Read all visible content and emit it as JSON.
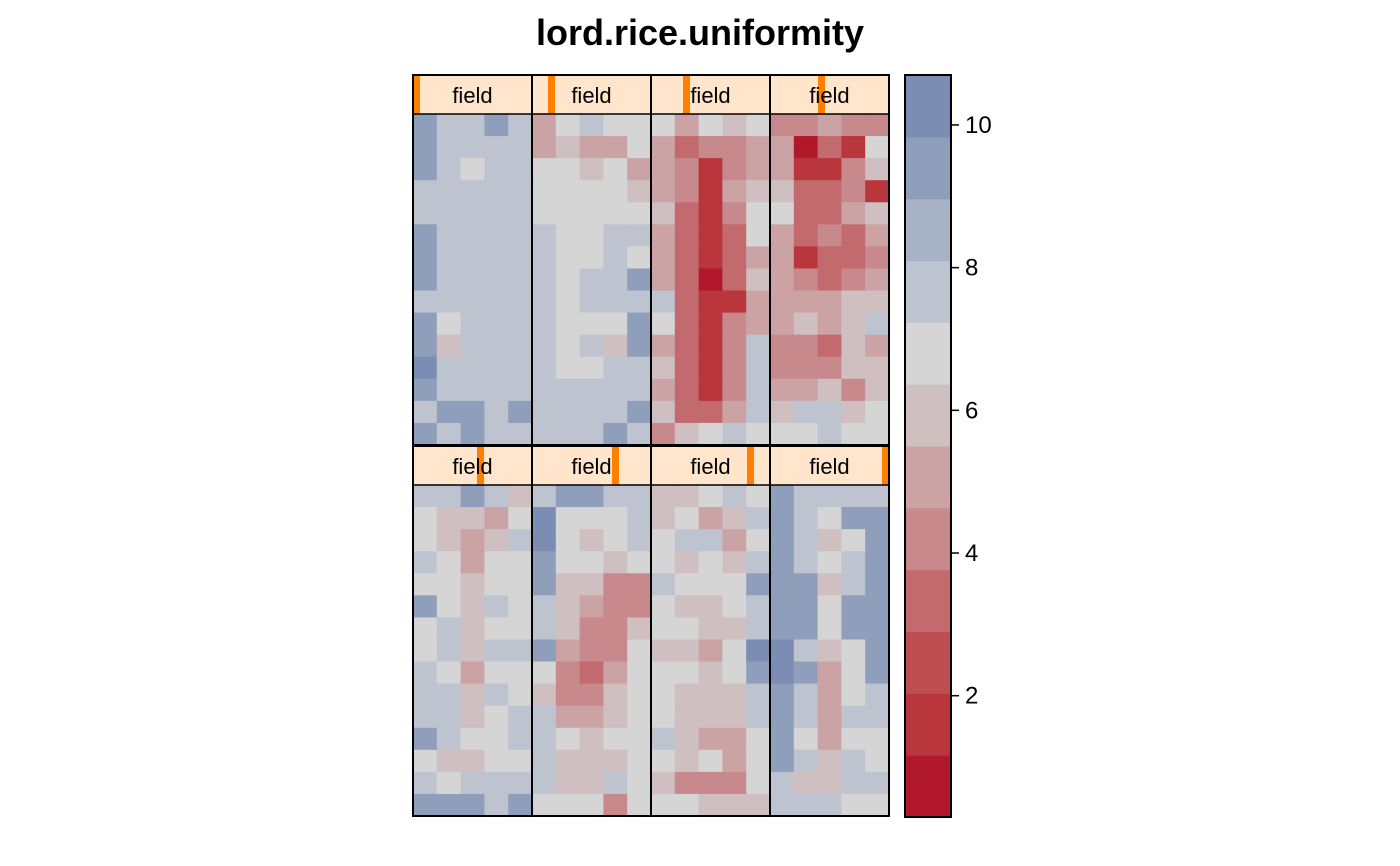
{
  "chart_data": {
    "type": "heatmap",
    "title": "lord.rice.uniformity",
    "xlabel": "",
    "ylabel": "",
    "panels": [
      {
        "strip_label": "field",
        "strip_level": 1,
        "strip_levels": 8,
        "grid": [
          [
            9,
            8,
            8,
            9,
            8
          ],
          [
            9,
            8,
            8,
            8,
            8
          ],
          [
            9,
            8,
            7,
            8,
            8
          ],
          [
            8,
            8,
            8,
            8,
            8
          ],
          [
            8,
            8,
            8,
            8,
            8
          ],
          [
            9,
            8,
            8,
            8,
            8
          ],
          [
            9,
            8,
            8,
            8,
            8
          ],
          [
            9,
            8,
            8,
            8,
            8
          ],
          [
            8,
            8,
            8,
            8,
            8
          ],
          [
            9,
            7,
            8,
            8,
            8
          ],
          [
            9,
            6,
            8,
            8,
            8
          ],
          [
            10,
            8,
            8,
            8,
            8
          ],
          [
            9,
            8,
            8,
            8,
            8
          ],
          [
            8,
            9,
            9,
            8,
            9
          ],
          [
            9,
            8,
            9,
            8,
            8
          ]
        ]
      },
      {
        "strip_label": "field",
        "strip_level": 2,
        "strip_levels": 8,
        "grid": [
          [
            5,
            7,
            8,
            7,
            7
          ],
          [
            5,
            6,
            5,
            5,
            7
          ],
          [
            7,
            7,
            6,
            7,
            5
          ],
          [
            7,
            7,
            7,
            7,
            6
          ],
          [
            7,
            7,
            7,
            7,
            7
          ],
          [
            8,
            7,
            7,
            8,
            8
          ],
          [
            8,
            7,
            7,
            8,
            7
          ],
          [
            8,
            7,
            8,
            8,
            9
          ],
          [
            8,
            7,
            8,
            8,
            8
          ],
          [
            8,
            7,
            7,
            7,
            9
          ],
          [
            8,
            7,
            8,
            6,
            9
          ],
          [
            8,
            7,
            7,
            8,
            8
          ],
          [
            8,
            8,
            8,
            8,
            8
          ],
          [
            8,
            8,
            8,
            8,
            9
          ],
          [
            8,
            8,
            8,
            9,
            8
          ]
        ]
      },
      {
        "strip_label": "field",
        "strip_level": 3,
        "strip_levels": 8,
        "grid": [
          [
            7,
            5,
            7,
            6,
            7
          ],
          [
            5,
            3,
            4,
            4,
            5
          ],
          [
            5,
            4,
            2,
            4,
            5
          ],
          [
            5,
            4,
            2,
            5,
            6
          ],
          [
            6,
            3,
            2,
            4,
            7
          ],
          [
            5,
            3,
            2,
            3,
            7
          ],
          [
            5,
            3,
            2,
            3,
            5
          ],
          [
            5,
            3,
            1,
            3,
            6
          ],
          [
            8,
            3,
            2,
            2,
            5
          ],
          [
            7,
            3,
            2,
            4,
            5
          ],
          [
            5,
            3,
            2,
            4,
            8
          ],
          [
            6,
            3,
            2,
            4,
            8
          ],
          [
            5,
            3,
            2,
            4,
            8
          ],
          [
            6,
            3,
            3,
            5,
            8
          ],
          [
            4,
            6,
            7,
            8,
            7
          ]
        ]
      },
      {
        "strip_label": "field",
        "strip_level": 4,
        "strip_levels": 8,
        "grid": [
          [
            4,
            4,
            5,
            4,
            4
          ],
          [
            5,
            1,
            3,
            2,
            7
          ],
          [
            5,
            2,
            2,
            4,
            6
          ],
          [
            6,
            3,
            3,
            4,
            2
          ],
          [
            7,
            3,
            3,
            5,
            6
          ],
          [
            5,
            3,
            4,
            3,
            5
          ],
          [
            5,
            2,
            3,
            3,
            4
          ],
          [
            5,
            4,
            3,
            4,
            5
          ],
          [
            5,
            5,
            5,
            6,
            6
          ],
          [
            5,
            6,
            5,
            6,
            8
          ],
          [
            4,
            4,
            3,
            6,
            5
          ],
          [
            4,
            4,
            4,
            6,
            6
          ],
          [
            5,
            5,
            6,
            4,
            6
          ],
          [
            6,
            8,
            8,
            6,
            7
          ],
          [
            7,
            7,
            8,
            7,
            7
          ]
        ]
      },
      {
        "strip_label": "field",
        "strip_level": 5,
        "strip_levels": 8,
        "grid": [
          [
            8,
            8,
            9,
            8,
            6
          ],
          [
            7,
            6,
            6,
            5,
            7
          ],
          [
            7,
            6,
            5,
            6,
            8
          ],
          [
            8,
            7,
            5,
            7,
            7
          ],
          [
            7,
            7,
            6,
            7,
            7
          ],
          [
            9,
            7,
            6,
            8,
            7
          ],
          [
            7,
            8,
            6,
            7,
            7
          ],
          [
            7,
            8,
            6,
            8,
            8
          ],
          [
            8,
            7,
            5,
            7,
            7
          ],
          [
            8,
            8,
            6,
            8,
            7
          ],
          [
            8,
            8,
            6,
            7,
            8
          ],
          [
            9,
            8,
            7,
            7,
            8
          ],
          [
            7,
            6,
            6,
            7,
            7
          ],
          [
            8,
            7,
            8,
            8,
            8
          ],
          [
            9,
            9,
            9,
            8,
            9
          ]
        ]
      },
      {
        "strip_label": "field",
        "strip_level": 6,
        "strip_levels": 8,
        "grid": [
          [
            8,
            9,
            9,
            8,
            8
          ],
          [
            10,
            7,
            7,
            7,
            8
          ],
          [
            10,
            7,
            6,
            7,
            8
          ],
          [
            9,
            7,
            7,
            6,
            7
          ],
          [
            9,
            6,
            6,
            4,
            4
          ],
          [
            8,
            6,
            5,
            4,
            4
          ],
          [
            8,
            6,
            4,
            4,
            6
          ],
          [
            9,
            5,
            4,
            4,
            7
          ],
          [
            7,
            4,
            3,
            5,
            7
          ],
          [
            6,
            4,
            4,
            6,
            7
          ],
          [
            8,
            5,
            5,
            6,
            7
          ],
          [
            8,
            7,
            6,
            7,
            7
          ],
          [
            8,
            6,
            6,
            6,
            7
          ],
          [
            8,
            6,
            6,
            8,
            7
          ],
          [
            7,
            7,
            7,
            4,
            7
          ]
        ]
      },
      {
        "strip_label": "field",
        "strip_level": 7,
        "strip_levels": 8,
        "grid": [
          [
            6,
            6,
            7,
            8,
            7
          ],
          [
            6,
            7,
            5,
            6,
            8
          ],
          [
            7,
            8,
            8,
            5,
            7
          ],
          [
            7,
            6,
            7,
            6,
            8
          ],
          [
            8,
            7,
            7,
            7,
            9
          ],
          [
            7,
            6,
            6,
            7,
            8
          ],
          [
            7,
            7,
            6,
            6,
            8
          ],
          [
            6,
            6,
            5,
            7,
            10
          ],
          [
            7,
            7,
            6,
            7,
            9
          ],
          [
            7,
            6,
            6,
            6,
            8
          ],
          [
            7,
            6,
            6,
            6,
            8
          ],
          [
            8,
            6,
            5,
            5,
            7
          ],
          [
            7,
            6,
            7,
            5,
            7
          ],
          [
            6,
            4,
            4,
            4,
            7
          ],
          [
            7,
            7,
            6,
            6,
            6
          ]
        ]
      },
      {
        "strip_label": "field",
        "strip_level": 8,
        "strip_levels": 8,
        "grid": [
          [
            9,
            8,
            8,
            8,
            8
          ],
          [
            9,
            8,
            7,
            9,
            9
          ],
          [
            9,
            8,
            6,
            7,
            9
          ],
          [
            9,
            8,
            7,
            8,
            9
          ],
          [
            9,
            9,
            6,
            8,
            9
          ],
          [
            9,
            9,
            7,
            9,
            9
          ],
          [
            9,
            9,
            7,
            9,
            9
          ],
          [
            10,
            8,
            6,
            7,
            9
          ],
          [
            10,
            9,
            5,
            7,
            9
          ],
          [
            9,
            8,
            5,
            7,
            8
          ],
          [
            9,
            8,
            5,
            8,
            8
          ],
          [
            9,
            7,
            5,
            7,
            7
          ],
          [
            9,
            8,
            6,
            8,
            7
          ],
          [
            8,
            6,
            6,
            8,
            8
          ],
          [
            8,
            8,
            8,
            7,
            7
          ]
        ]
      }
    ],
    "colorkey": {
      "ticks": [
        2,
        4,
        6,
        8,
        10
      ],
      "range": [
        0.3,
        10.7
      ],
      "colors": [
        "#B2182B",
        "#B8363C",
        "#BE4E52",
        "#C26A6E",
        "#C7898B",
        "#CBA3A5",
        "#CFBFC1",
        "#D5D5D5",
        "#BEC4CF",
        "#A7B2C5",
        "#8E9EBB",
        "#7B8DB3"
      ]
    },
    "strip_bg": "#FFE5CC",
    "strip_marker": "#FF7F00"
  }
}
